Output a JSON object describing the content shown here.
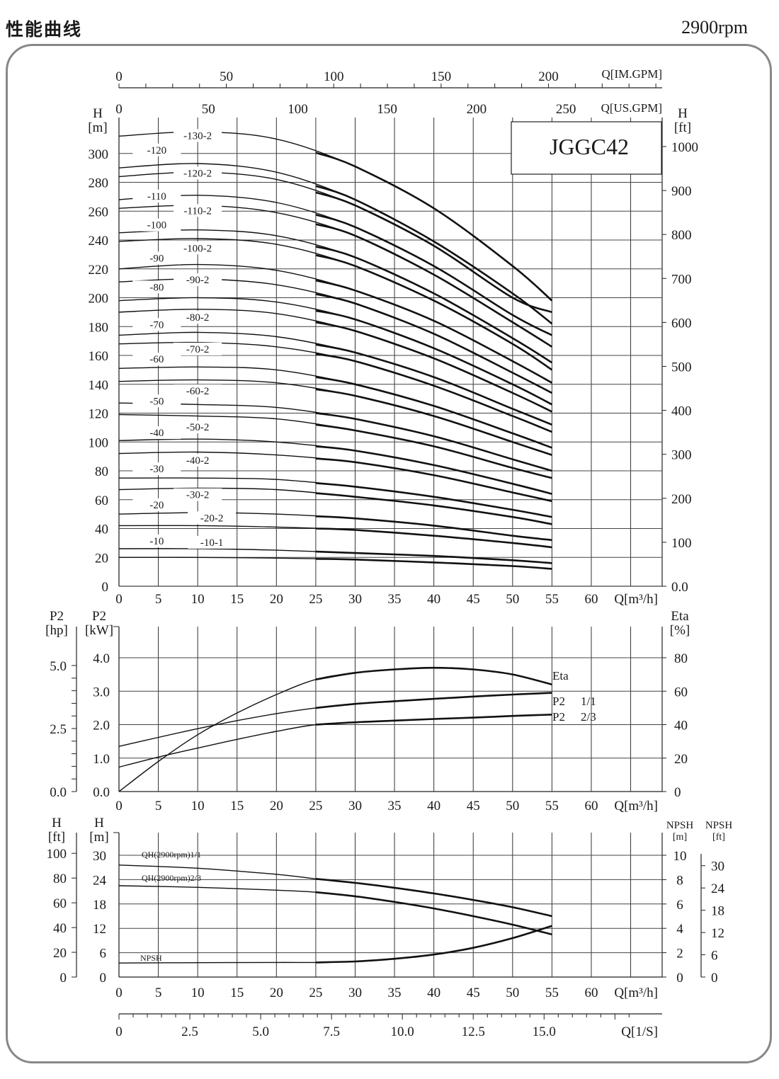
{
  "page": {
    "title": "性能曲线",
    "rpm": "2900rpm",
    "model": "JGGC42"
  },
  "chart_data": [
    {
      "type": "line",
      "title": "JGGC42",
      "xlabel": "Q[m³/h]",
      "x_ticks": [
        0,
        5,
        10,
        15,
        20,
        25,
        30,
        35,
        40,
        45,
        50,
        55,
        60
      ],
      "xlim": [
        0,
        69
      ],
      "ylabel": "H [m]",
      "ylim": [
        0,
        330
      ],
      "y_ticks": [
        0,
        20,
        40,
        60,
        80,
        100,
        120,
        140,
        160,
        180,
        200,
        220,
        240,
        260,
        280,
        300
      ],
      "y_ticks_right_label": "H [ft]",
      "y_ticks_right": [
        "0.0",
        "100",
        "200",
        "300",
        "400",
        "500",
        "600",
        "700",
        "800",
        "900",
        "1000"
      ],
      "secondary_axes": [
        {
          "label": "Q[IM.GPM]",
          "ticks": [
            0,
            50,
            100,
            150,
            200
          ]
        },
        {
          "label": "Q[US.GPM]",
          "ticks": [
            0,
            50,
            100,
            150,
            200,
            250
          ]
        }
      ],
      "series": [
        {
          "name": "-130-2",
          "x": [
            0,
            10,
            20,
            30,
            40,
            50,
            55
          ],
          "y": [
            312,
            315,
            310,
            291,
            262,
            222,
            198
          ]
        },
        {
          "name": "-120",
          "x": [
            0,
            10,
            20,
            30,
            40,
            50,
            55
          ],
          "y": [
            290,
            293,
            287,
            268,
            239,
            203,
            182
          ]
        },
        {
          "name": "-120-2",
          "x": [
            0,
            10,
            20,
            30,
            40,
            50,
            55
          ],
          "y": [
            284,
            287,
            282,
            264,
            236,
            200,
            190
          ]
        },
        {
          "name": "-110",
          "x": [
            0,
            10,
            20,
            30,
            40,
            50,
            55
          ],
          "y": [
            268,
            271,
            266,
            249,
            222,
            188,
            174
          ]
        },
        {
          "name": "-110-2",
          "x": [
            0,
            10,
            20,
            30,
            40,
            50,
            55
          ],
          "y": [
            262,
            264,
            259,
            243,
            216,
            183,
            166
          ]
        },
        {
          "name": "-100",
          "x": [
            0,
            10,
            20,
            30,
            40,
            50,
            55
          ],
          "y": [
            245,
            247,
            243,
            228,
            203,
            172,
            155
          ]
        },
        {
          "name": "-100-2",
          "x": [
            0,
            10,
            20,
            30,
            40,
            50,
            55
          ],
          "y": [
            239,
            241,
            237,
            222,
            198,
            168,
            150
          ]
        },
        {
          "name": "-90",
          "x": [
            0,
            10,
            20,
            30,
            40,
            50,
            55
          ],
          "y": [
            220,
            223,
            219,
            205,
            184,
            156,
            141
          ]
        },
        {
          "name": "-90-2",
          "x": [
            0,
            10,
            20,
            30,
            40,
            50,
            55
          ],
          "y": [
            211,
            213,
            209,
            196,
            175,
            148,
            134
          ]
        },
        {
          "name": "-80",
          "x": [
            0,
            10,
            20,
            30,
            40,
            50,
            55
          ],
          "y": [
            198,
            200,
            197,
            185,
            165,
            140,
            126
          ]
        },
        {
          "name": "-80-2",
          "x": [
            0,
            10,
            20,
            30,
            40,
            50,
            55
          ],
          "y": [
            190,
            192,
            189,
            177,
            158,
            134,
            121
          ]
        },
        {
          "name": "-70",
          "x": [
            0,
            10,
            20,
            30,
            40,
            50,
            55
          ],
          "y": [
            174,
            176,
            173,
            162,
            145,
            123,
            112
          ]
        },
        {
          "name": "-70-2",
          "x": [
            0,
            10,
            20,
            30,
            40,
            50,
            55
          ],
          "y": [
            168,
            169,
            166,
            156,
            139,
            118,
            107
          ]
        },
        {
          "name": "-60",
          "x": [
            0,
            10,
            20,
            30,
            40,
            50,
            55
          ],
          "y": [
            151,
            152,
            150,
            140,
            125,
            106,
            96
          ]
        },
        {
          "name": "-60-2",
          "x": [
            0,
            10,
            20,
            30,
            40,
            50,
            55
          ],
          "y": [
            142,
            143,
            141,
            132,
            118,
            100,
            91
          ]
        },
        {
          "name": "-50",
          "x": [
            0,
            10,
            20,
            30,
            40,
            50,
            55
          ],
          "y": [
            127,
            126,
            124,
            116,
            104,
            88,
            80
          ]
        },
        {
          "name": "-50-2",
          "x": [
            0,
            10,
            20,
            30,
            40,
            50,
            55
          ],
          "y": [
            119,
            118,
            116,
            108,
            97,
            82,
            75
          ]
        },
        {
          "name": "-40",
          "x": [
            0,
            10,
            20,
            30,
            40,
            50,
            55
          ],
          "y": [
            101,
            102,
            100,
            94,
            84,
            71,
            64
          ]
        },
        {
          "name": "-40-2",
          "x": [
            0,
            10,
            20,
            30,
            40,
            50,
            55
          ],
          "y": [
            92,
            93,
            91,
            86,
            77,
            65,
            59
          ]
        },
        {
          "name": "-30",
          "x": [
            0,
            10,
            20,
            30,
            40,
            50,
            55
          ],
          "y": [
            75,
            75,
            74,
            69,
            62,
            53,
            48
          ]
        },
        {
          "name": "-30-2",
          "x": [
            0,
            10,
            20,
            30,
            40,
            50,
            55
          ],
          "y": [
            67,
            68,
            67,
            62,
            56,
            48,
            43
          ]
        },
        {
          "name": "-20",
          "x": [
            0,
            10,
            20,
            30,
            40,
            50,
            55
          ],
          "y": [
            50,
            51,
            50,
            47,
            42,
            35,
            32
          ]
        },
        {
          "name": "-20-2",
          "x": [
            0,
            10,
            20,
            30,
            40,
            50,
            55
          ],
          "y": [
            42,
            42,
            41,
            39,
            35,
            30,
            27
          ]
        },
        {
          "name": "-10",
          "x": [
            0,
            10,
            20,
            30,
            40,
            50,
            55
          ],
          "y": [
            26,
            26,
            25,
            23,
            21,
            18,
            16
          ]
        },
        {
          "name": "-10-1",
          "x": [
            0,
            10,
            20,
            30,
            40,
            50,
            55
          ],
          "y": [
            20,
            20,
            19.5,
            18.5,
            16.5,
            14,
            12
          ]
        }
      ],
      "labels": [
        {
          "text": "-130-2",
          "q": 10,
          "h": 310
        },
        {
          "text": "-120",
          "q": 3,
          "h": 300
        },
        {
          "text": "-120-2",
          "q": 10,
          "h": 284
        },
        {
          "text": "-110",
          "q": 3,
          "h": 268
        },
        {
          "text": "-110-2",
          "q": 10,
          "h": 258
        },
        {
          "text": "-100",
          "q": 3,
          "h": 248
        },
        {
          "text": "-100-2",
          "q": 10,
          "h": 232
        },
        {
          "text": "-90",
          "q": 3,
          "h": 225
        },
        {
          "text": "-90-2",
          "q": 10,
          "h": 210
        },
        {
          "text": "-80",
          "q": 3,
          "h": 205
        },
        {
          "text": "-80-2",
          "q": 10,
          "h": 184
        },
        {
          "text": "-70",
          "q": 3,
          "h": 179
        },
        {
          "text": "-70-2",
          "q": 10,
          "h": 162
        },
        {
          "text": "-60",
          "q": 3,
          "h": 155
        },
        {
          "text": "-60-2",
          "q": 10,
          "h": 133
        },
        {
          "text": "-50",
          "q": 3,
          "h": 126
        },
        {
          "text": "-50-2",
          "q": 10,
          "h": 108
        },
        {
          "text": "-40",
          "q": 3,
          "h": 104
        },
        {
          "text": "-40-2",
          "q": 10,
          "h": 85
        },
        {
          "text": "-30",
          "q": 3,
          "h": 79
        },
        {
          "text": "-30-2",
          "q": 10,
          "h": 61
        },
        {
          "text": "-20",
          "q": 3,
          "h": 54
        },
        {
          "text": "-20-2",
          "q": 10,
          "h": 45
        },
        {
          "text": "-10",
          "q": 3,
          "h": 29
        },
        {
          "text": "-10-1",
          "q": 10,
          "h": 28
        }
      ]
    },
    {
      "type": "line",
      "xlabel": "Q[m³/h]",
      "x_ticks": [
        0,
        5,
        10,
        15,
        20,
        25,
        30,
        35,
        40,
        45,
        50,
        55,
        60
      ],
      "xlim": [
        0,
        69
      ],
      "ylabel": "P2 [kW]",
      "ylim": [
        0,
        4.3
      ],
      "y_ticks": [
        "0.0",
        "1.0",
        "2.0",
        "3.0",
        "4.0"
      ],
      "y_ticks_left_label": "P2 [hp]",
      "y_ticks_left": [
        "0.0",
        "2.5",
        "5.0"
      ],
      "y_ticks_right_label": "Eta [%]",
      "y_ticks_right": [
        "0",
        "20",
        "40",
        "60",
        "80"
      ],
      "series": [
        {
          "name": "Eta",
          "axis": "right",
          "x": [
            0,
            5,
            10,
            15,
            20,
            25,
            30,
            35,
            40,
            45,
            50,
            55
          ],
          "y": [
            0,
            18,
            34,
            47,
            58,
            67,
            71,
            73,
            74,
            73,
            70,
            64
          ]
        },
        {
          "name": "P2 1/1",
          "axis": "left",
          "x": [
            0,
            5,
            10,
            15,
            20,
            25,
            30,
            35,
            40,
            45,
            50,
            55
          ],
          "y": [
            1.35,
            1.62,
            1.88,
            2.12,
            2.33,
            2.5,
            2.62,
            2.7,
            2.77,
            2.84,
            2.9,
            2.95
          ]
        },
        {
          "name": "P2 2/3",
          "axis": "left",
          "x": [
            0,
            5,
            10,
            15,
            20,
            25,
            30,
            35,
            40,
            45,
            50,
            55
          ],
          "y": [
            0.73,
            1.03,
            1.3,
            1.56,
            1.8,
            2.0,
            2.07,
            2.12,
            2.17,
            2.21,
            2.26,
            2.3
          ]
        }
      ],
      "legend": [
        "Eta",
        "P2 1/1",
        "P2 2/3"
      ]
    },
    {
      "type": "line",
      "xlabel": "Q[m³/h]",
      "x_ticks": [
        0,
        5,
        10,
        15,
        20,
        25,
        30,
        35,
        40,
        45,
        50,
        55,
        60
      ],
      "xlim": [
        0,
        69
      ],
      "ylabel": "H [m]",
      "ylim": [
        0,
        34
      ],
      "y_ticks": [
        0,
        6,
        12,
        18,
        24,
        30
      ],
      "y_ticks_left_label": "H [ft]",
      "y_ticks_left": [
        0,
        20,
        40,
        60,
        80,
        100
      ],
      "y_ticks_right_label": "NPSH [m]",
      "y_ticks_right": [
        0,
        2,
        4,
        6,
        8,
        10
      ],
      "y_ticks_right2_label": "NPSH [ft]",
      "y_ticks_right2": [
        0,
        6,
        12,
        18,
        24,
        30
      ],
      "series": [
        {
          "name": "QH(2900rpm)1/1",
          "x": [
            0,
            10,
            20,
            25,
            30,
            35,
            40,
            45,
            50,
            55
          ],
          "y": [
            27.6,
            26.8,
            25.3,
            24.2,
            23.2,
            22.0,
            20.6,
            19.0,
            17.2,
            15.0
          ]
        },
        {
          "name": "QH(2900rpm)2/3",
          "x": [
            0,
            10,
            20,
            25,
            30,
            35,
            40,
            45,
            50,
            55
          ],
          "y": [
            22.5,
            22.1,
            21.4,
            20.9,
            19.9,
            18.5,
            16.9,
            15.0,
            12.9,
            10.5
          ]
        },
        {
          "name": "NPSH",
          "axis": "right",
          "x": [
            0,
            10,
            20,
            25,
            30,
            35,
            40,
            45,
            50,
            55
          ],
          "y": [
            1.15,
            1.18,
            1.2,
            1.2,
            1.28,
            1.5,
            1.85,
            2.4,
            3.2,
            4.2
          ]
        }
      ],
      "q_ls_axis": {
        "label": "Q[1/S]",
        "ticks": [
          "0",
          "2.5",
          "5.0",
          "7.5",
          "10.0",
          "12.5",
          "15.0"
        ]
      }
    }
  ]
}
